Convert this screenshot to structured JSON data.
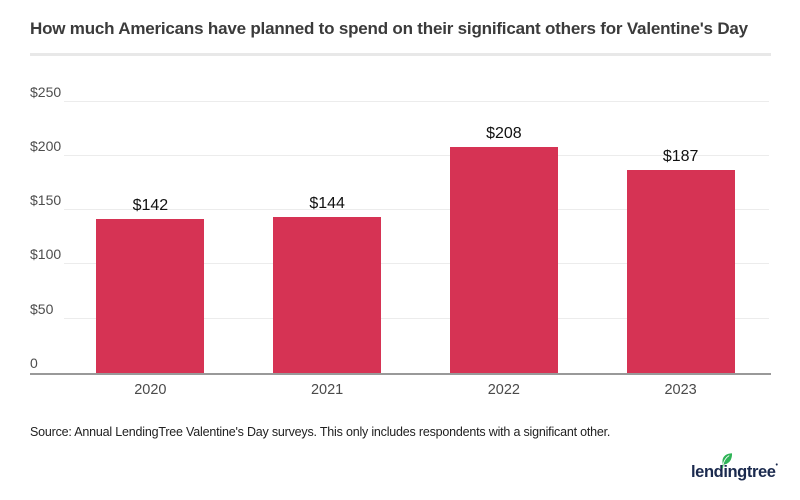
{
  "title": "How much Americans have planned to spend on their significant others for Valentine's Day",
  "chart_data": {
    "type": "bar",
    "title": "How much Americans have planned to spend on their significant others for Valentine's Day",
    "categories": [
      "2020",
      "2021",
      "2022",
      "2023"
    ],
    "values": [
      142,
      144,
      208,
      187
    ],
    "value_labels": [
      "$142",
      "$144",
      "$208",
      "$187"
    ],
    "xlabel": "",
    "ylabel": "",
    "ylim": [
      0,
      250
    ],
    "yticks": [
      0,
      50,
      100,
      150,
      200,
      250
    ],
    "ytick_labels": [
      "0",
      "$50",
      "$100",
      "$150",
      "$200",
      "$250"
    ],
    "grid": "horizontal",
    "legend": "none",
    "bar_color": "#D63354"
  },
  "footer": {
    "source": "Source: Annual LendingTree Valentine's Day surveys. This only includes respondents with a significant other.",
    "logo_text": "lendingtree",
    "logo_trademark": "•"
  },
  "colors": {
    "bar": "#D63354",
    "axis_line": "#999999",
    "gridline": "#ececec",
    "title_text": "#3b3b3b",
    "tick_text": "#4a4a4a",
    "value_text": "#111111",
    "logo_navy": "#1b2a4e",
    "logo_green": "#2fb457"
  }
}
